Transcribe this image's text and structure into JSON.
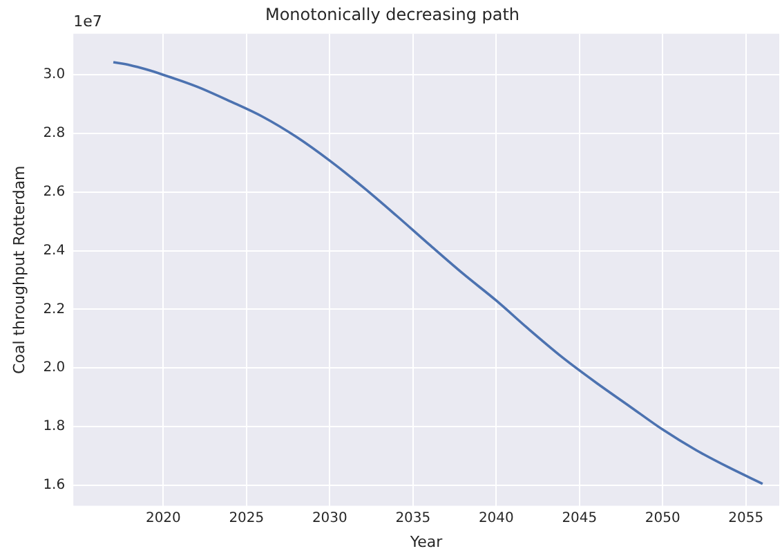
{
  "chart_data": {
    "type": "line",
    "title": "Monotonically decreasing path",
    "xlabel": "Year",
    "ylabel": "Coal throughput Rotterdam",
    "annotations": [
      "1e7"
    ],
    "x": [
      2017,
      2018,
      2019,
      2020,
      2022,
      2024,
      2026,
      2028,
      2030,
      2032,
      2034,
      2036,
      2038,
      2040,
      2042,
      2044,
      2046,
      2048,
      2050,
      2052,
      2054,
      2056
    ],
    "series": [
      {
        "color": "#4c72b0",
        "values": [
          3.043,
          3.033,
          3.018,
          3.0,
          2.96,
          2.91,
          2.856,
          2.788,
          2.707,
          2.617,
          2.52,
          2.42,
          2.322,
          2.23,
          2.13,
          2.035,
          1.95,
          1.87,
          1.79,
          1.72,
          1.66,
          1.605
        ]
      }
    ],
    "xlim": [
      2014.6,
      2057.0
    ],
    "xticks": [
      2020,
      2025,
      2030,
      2035,
      2040,
      2045,
      2050,
      2055
    ],
    "ylim": [
      1.53,
      3.14
    ],
    "yticks": [
      1.6,
      1.8,
      {
        "value": 2,
        "label": "2.0"
      },
      2.2,
      2.4,
      2.6,
      2.8,
      {
        "value": 3,
        "label": "3.0"
      }
    ],
    "grid": true,
    "legend": false,
    "marker": "none",
    "line_style": "solid"
  }
}
